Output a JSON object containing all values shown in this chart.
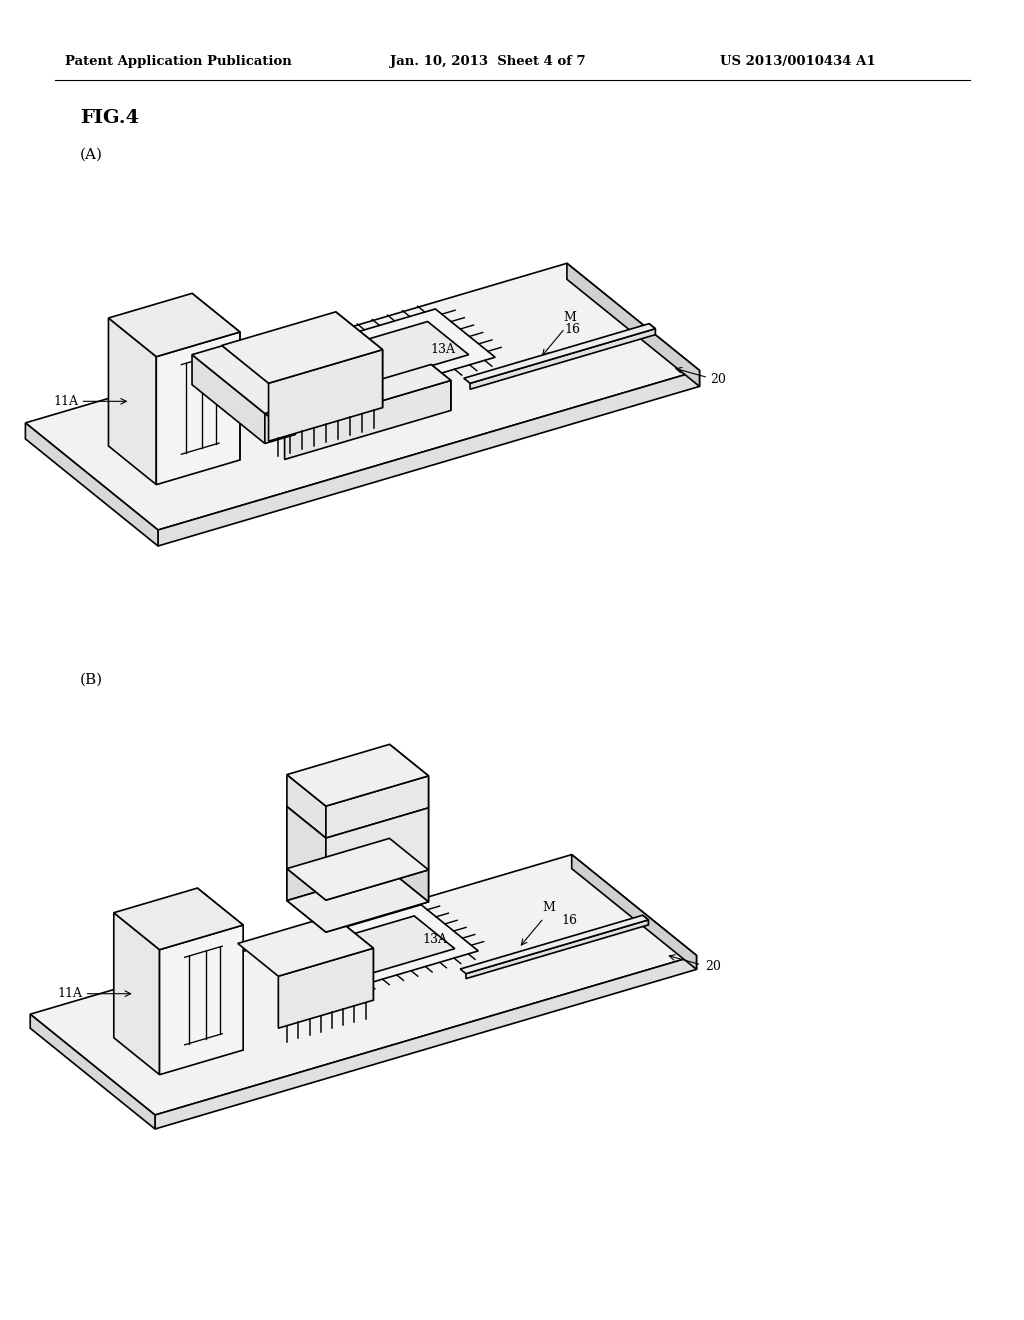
{
  "bg_color": "#ffffff",
  "line_color": "#000000",
  "line_width": 1.2,
  "page_width": 10.24,
  "page_height": 13.2,
  "header_left": "Patent Application Publication",
  "header_center": "Jan. 10, 2013  Sheet 4 of 7",
  "header_right": "US 2013/0010434 A1",
  "header_fontsize": 9.5,
  "fig_label": "FIG.4",
  "fig_label_fontsize": 14,
  "sub_A_label": "(A)",
  "sub_B_label": "(B)",
  "sub_label_fontsize": 11,
  "label_fontsize": 9
}
